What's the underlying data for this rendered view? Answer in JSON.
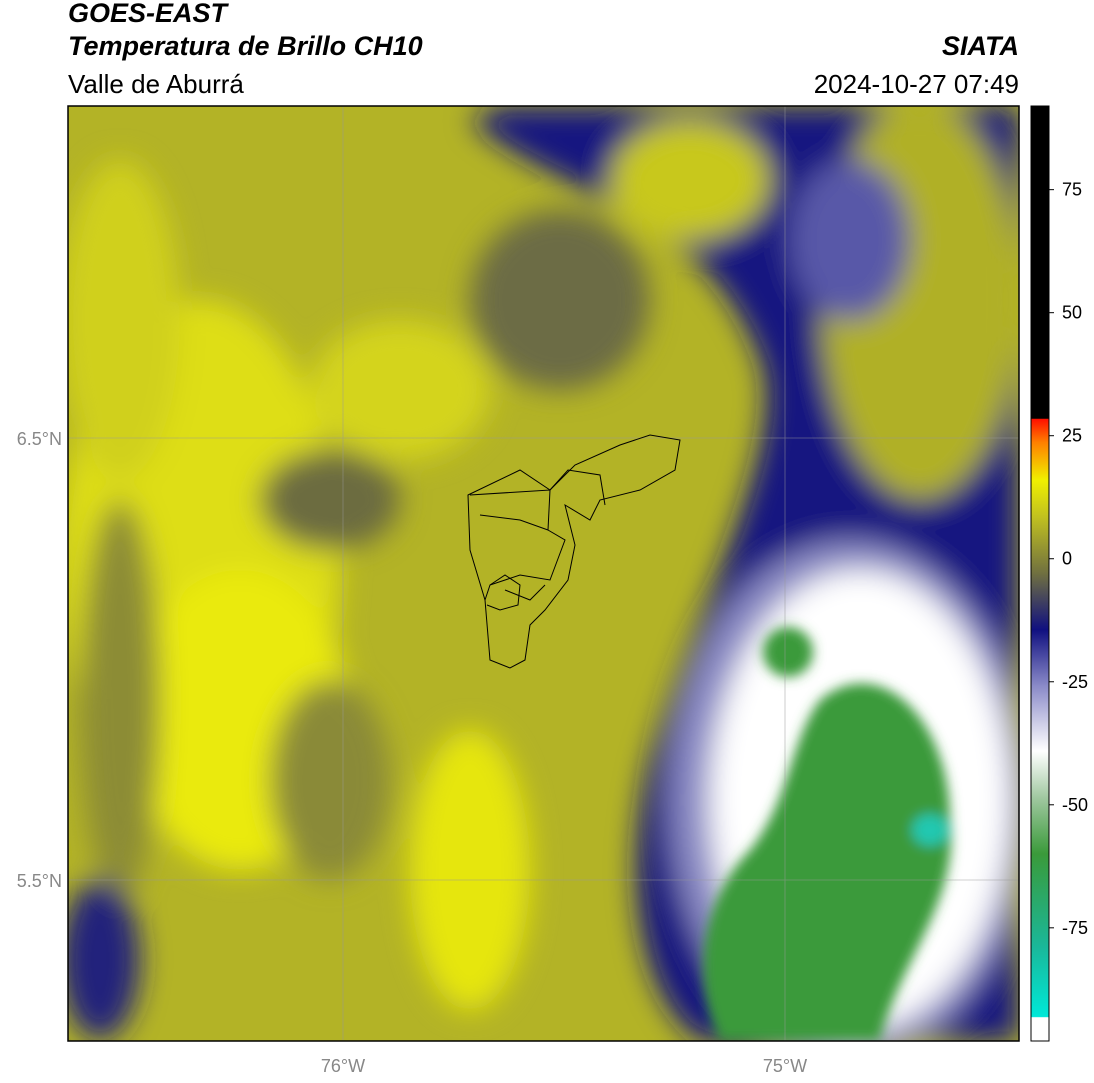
{
  "header": {
    "title": "GOES-EAST",
    "subtitle": "Temperatura de Brillo CH10",
    "region": "Valle de Aburrá",
    "agency": "SIATA",
    "datetime": "2024-10-27 07:49"
  },
  "map": {
    "lat_labels": [
      "6.5°N",
      "5.5°N"
    ],
    "lon_labels": [
      "76°W",
      "75°W"
    ]
  },
  "colorbar": {
    "lim": [
      -98,
      92
    ],
    "ticks": [
      75,
      50,
      25,
      0,
      -25,
      -50,
      -75
    ]
  }
}
